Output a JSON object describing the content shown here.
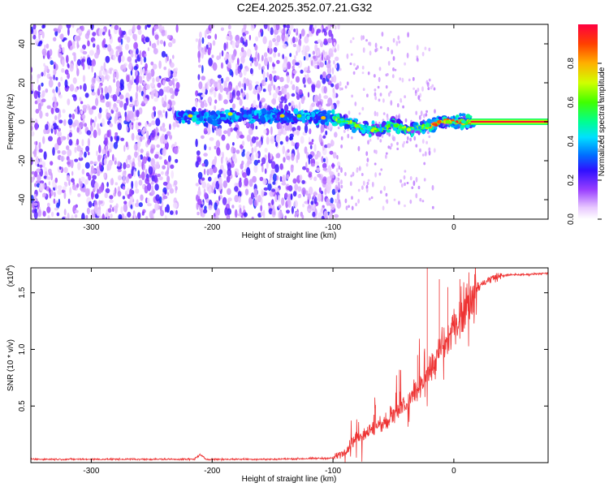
{
  "title": "C2E4.2025.352.07.21.G32",
  "chart_data": [
    {
      "type": "heatmap",
      "title": "C2E4.2025.352.07.21.G32",
      "xlabel": "Height of straight line (km)",
      "ylabel": "Frequency (Hz)",
      "xlim": [
        -350,
        78
      ],
      "ylim": [
        -50,
        50
      ],
      "x_ticks": [
        -300,
        -200,
        -100,
        0
      ],
      "x_tick_labels": [
        "-300",
        "-200",
        "-100",
        "0"
      ],
      "y_ticks": [
        -40,
        -20,
        0,
        20,
        40
      ],
      "y_tick_labels": [
        "-40",
        "-20",
        "0",
        "20",
        "40"
      ],
      "colorbar": {
        "label": "Normalized spectral amplitude",
        "range": [
          0.0,
          1.0
        ],
        "ticks": [
          0.0,
          0.2,
          0.4,
          0.6,
          0.8
        ],
        "tick_labels": [
          "0.0",
          "0.2",
          "0.4",
          "0.6",
          "0.8"
        ],
        "colormap": "rainbow"
      },
      "regions": [
        {
          "name": "noise",
          "x_range": [
            -350,
            -100
          ],
          "amplitude": "low-moderate"
        },
        {
          "name": "gap",
          "x_range": [
            -228,
            -213
          ],
          "amplitude": "none"
        },
        {
          "name": "sparse-noise",
          "x_range": [
            -100,
            -18
          ],
          "amplitude": "low"
        },
        {
          "name": "carrier",
          "x_range": [
            -100,
            78
          ],
          "amplitude": "high"
        }
      ],
      "carrier_track": {
        "x": [
          -225,
          -205,
          -180,
          -150,
          -120,
          -100,
          -90,
          -80,
          -70,
          -60,
          -50,
          -40,
          -30,
          -20,
          -10,
          0,
          10,
          15,
          78
        ],
        "y": [
          3,
          2,
          3,
          3,
          3,
          2,
          0,
          -2,
          -4,
          -4,
          -1,
          -4,
          -3,
          -2,
          0,
          0,
          0,
          0,
          0
        ]
      }
    },
    {
      "type": "line",
      "xlabel": "Height of straight line (km)",
      "ylabel": "SNR (10 * v/v)",
      "y_multiplier": "(x10",
      "y_multiplier_exp": "4",
      "y_multiplier_close": ")",
      "xlim": [
        -350,
        78
      ],
      "ylim": [
        0,
        1.72
      ],
      "x_ticks": [
        -300,
        -200,
        -100,
        0
      ],
      "x_tick_labels": [
        "-300",
        "-200",
        "-100",
        "0"
      ],
      "y_ticks": [
        0.5,
        1.0,
        1.5
      ],
      "y_tick_labels": [
        "0.5",
        "1.0",
        "1.5"
      ],
      "color": "#ee3333",
      "series": [
        {
          "name": "SNR",
          "x": [
            -350,
            -300,
            -250,
            -215,
            -210,
            -205,
            -150,
            -100,
            -95,
            -90,
            -85,
            -80,
            -75,
            -70,
            -65,
            -60,
            -55,
            -50,
            -45,
            -40,
            -35,
            -30,
            -25,
            -20,
            -15,
            -10,
            -5,
            0,
            5,
            10,
            15,
            20,
            25,
            30,
            35,
            40,
            50,
            60,
            70,
            78
          ],
          "y": [
            0.03,
            0.03,
            0.03,
            0.03,
            0.07,
            0.03,
            0.03,
            0.04,
            0.07,
            0.1,
            0.17,
            0.22,
            0.25,
            0.28,
            0.3,
            0.33,
            0.38,
            0.42,
            0.45,
            0.52,
            0.58,
            0.64,
            0.72,
            0.8,
            0.9,
            1.0,
            1.08,
            1.18,
            1.3,
            1.4,
            1.48,
            1.55,
            1.59,
            1.62,
            1.64,
            1.65,
            1.66,
            1.66,
            1.67,
            1.67
          ]
        }
      ]
    }
  ]
}
